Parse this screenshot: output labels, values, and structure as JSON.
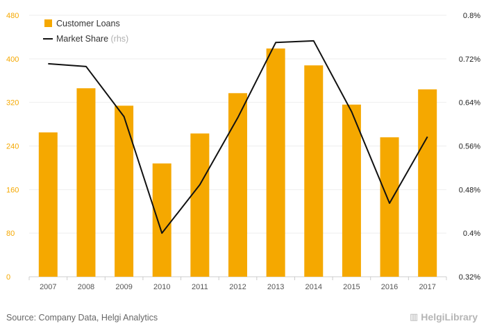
{
  "chart_data": {
    "type": "bar",
    "categories": [
      "2007",
      "2008",
      "2009",
      "2010",
      "2011",
      "2012",
      "2013",
      "2014",
      "2015",
      "2016",
      "2017"
    ],
    "series": [
      {
        "name": "Customer Loans",
        "type": "bar",
        "axis": "left",
        "values": [
          265,
          346,
          314,
          208,
          263,
          337,
          419,
          388,
          316,
          256,
          344
        ]
      },
      {
        "name": "Market Share",
        "legend_suffix": "(rhs)",
        "type": "line",
        "axis": "right",
        "values": [
          0.711,
          0.706,
          0.614,
          0.4,
          0.489,
          0.612,
          0.75,
          0.753,
          0.623,
          0.455,
          0.577
        ]
      }
    ],
    "left_axis": {
      "ticks": [
        "0",
        "80",
        "160",
        "240",
        "320",
        "400",
        "480"
      ],
      "ylim": [
        0,
        480
      ]
    },
    "right_axis": {
      "ticks": [
        "0.32%",
        "0.4%",
        "0.48%",
        "0.56%",
        "0.64%",
        "0.72%",
        "0.8%"
      ],
      "ylim": [
        0.32,
        0.8
      ]
    },
    "legend_position": "top-left",
    "grid": true,
    "colors": {
      "bar": "#f5a800",
      "line": "#111111",
      "left_ticks": "#f5a800",
      "right_ticks": "#222222"
    }
  },
  "footer": {
    "source": "Source: Company Data, Helgi Analytics",
    "brand": "HelgiLibrary"
  }
}
